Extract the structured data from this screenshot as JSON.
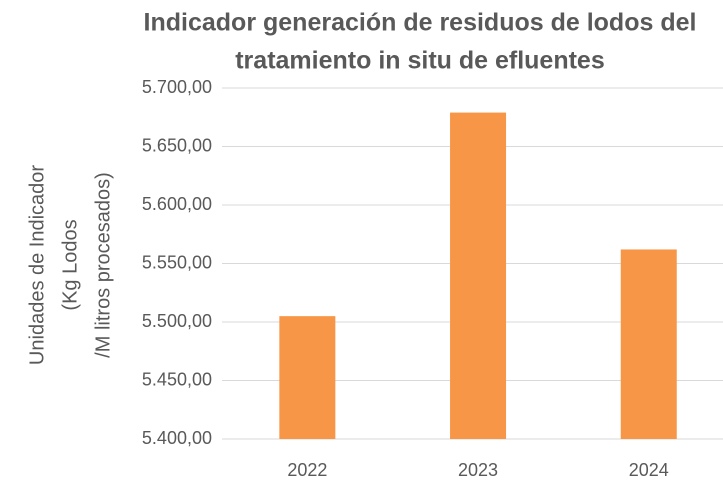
{
  "chart_data": {
    "type": "bar",
    "title": [
      "Indicador generación de residuos de lodos del",
      "tratamiento in situ de efluentes"
    ],
    "y_label": [
      "Unidades de Indicador",
      "(Kg Lodos",
      "/M litros procesados)"
    ],
    "categories": [
      "2022",
      "2023",
      "2024"
    ],
    "values": [
      5505,
      5679,
      5562
    ],
    "color": "#f79646",
    "ylim": [
      5400,
      5700
    ],
    "yticks": [
      {
        "value": 5400,
        "label": "5.400,00"
      },
      {
        "value": 5450,
        "label": "5.450,00"
      },
      {
        "value": 5500,
        "label": "5.500,00"
      },
      {
        "value": 5550,
        "label": "5.550,00"
      },
      {
        "value": 5600,
        "label": "5.600,00"
      },
      {
        "value": 5650,
        "label": "5.650,00"
      },
      {
        "value": 5700,
        "label": "5.700,00"
      }
    ],
    "grid": true
  }
}
